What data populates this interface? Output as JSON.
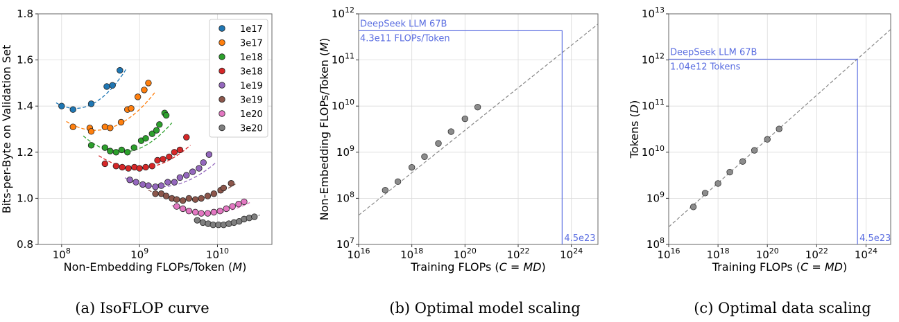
{
  "chart_data": [
    {
      "type": "scatter",
      "caption": "(a)  IsoFLOP curve",
      "xlabel_main": "Non-Embedding FLOPs/Token (",
      "xlabel_var": "M",
      "xlabel_end": ")",
      "ylabel": "Bits-per-Byte on Validation Set",
      "xscale": "log",
      "xlim": [
        50000000.0,
        50000000000.0
      ],
      "ylim": [
        0.8,
        1.8
      ],
      "xticks": [
        {
          "v": 100000000.0,
          "base": "10",
          "exp": "8"
        },
        {
          "v": 1000000000.0,
          "base": "10",
          "exp": "9"
        },
        {
          "v": 10000000000.0,
          "base": "10",
          "exp": "10"
        }
      ],
      "yticks": [
        {
          "v": 0.8,
          "label": "0.8"
        },
        {
          "v": 1.0,
          "label": "1.0"
        },
        {
          "v": 1.2,
          "label": "1.2"
        },
        {
          "v": 1.4,
          "label": "1.4"
        },
        {
          "v": 1.6,
          "label": "1.6"
        },
        {
          "v": 1.8,
          "label": "1.8"
        }
      ],
      "grid": true,
      "legend_position": "top-right",
      "series": [
        {
          "name": "1e17",
          "color": "#1f77b4",
          "points": [
            [
              100000000.0,
              1.4
            ],
            [
              140000000.0,
              1.385
            ],
            [
              240000000.0,
              1.41
            ],
            [
              380000000.0,
              1.485
            ],
            [
              450000000.0,
              1.49
            ],
            [
              560000000.0,
              1.555
            ]
          ],
          "fit": {
            "x0": 85000000.0,
            "x1": 680000000.0,
            "xmin": 150000000.0,
            "ymin": 1.39,
            "k": 0.4
          }
        },
        {
          "name": "3e17",
          "color": "#ff7f0e",
          "points": [
            [
              140000000.0,
              1.31
            ],
            [
              230000000.0,
              1.305
            ],
            [
              240000000.0,
              1.29
            ],
            [
              360000000.0,
              1.31
            ],
            [
              420000000.0,
              1.305
            ],
            [
              580000000.0,
              1.33
            ],
            [
              700000000.0,
              1.385
            ],
            [
              780000000.0,
              1.39
            ],
            [
              950000000.0,
              1.44
            ],
            [
              1150000000.0,
              1.47
            ],
            [
              1300000000.0,
              1.5
            ]
          ],
          "fit": {
            "x0": 115000000.0,
            "x1": 1600000000.0,
            "xmin": 270000000.0,
            "ymin": 1.295,
            "k": 0.28
          }
        },
        {
          "name": "1e18",
          "color": "#2ca02c",
          "points": [
            [
              240000000.0,
              1.23
            ],
            [
              360000000.0,
              1.22
            ],
            [
              420000000.0,
              1.205
            ],
            [
              500000000.0,
              1.2
            ],
            [
              590000000.0,
              1.21
            ],
            [
              700000000.0,
              1.2
            ],
            [
              850000000.0,
              1.22
            ],
            [
              1050000000.0,
              1.25
            ],
            [
              1200000000.0,
              1.26
            ],
            [
              1450000000.0,
              1.28
            ],
            [
              1650000000.0,
              1.295
            ],
            [
              1800000000.0,
              1.32
            ],
            [
              2100000000.0,
              1.37
            ],
            [
              2200000000.0,
              1.36
            ]
          ],
          "fit": {
            "x0": 190000000.0,
            "x1": 2600000000.0,
            "xmin": 580000000.0,
            "ymin": 1.2,
            "k": 0.3
          }
        },
        {
          "name": "3e18",
          "color": "#d62728",
          "points": [
            [
              360000000.0,
              1.15
            ],
            [
              500000000.0,
              1.14
            ],
            [
              600000000.0,
              1.135
            ],
            [
              720000000.0,
              1.13
            ],
            [
              860000000.0,
              1.135
            ],
            [
              1000000000.0,
              1.13
            ],
            [
              1200000000.0,
              1.135
            ],
            [
              1450000000.0,
              1.14
            ],
            [
              1700000000.0,
              1.165
            ],
            [
              2000000000.0,
              1.17
            ],
            [
              2400000000.0,
              1.18
            ],
            [
              2800000000.0,
              1.2
            ],
            [
              3300000000.0,
              1.21
            ],
            [
              4000000000.0,
              1.265
            ]
          ],
          "fit": {
            "x0": 300000000.0,
            "x1": 4500000000.0,
            "xmin": 950000000.0,
            "ymin": 1.13,
            "k": 0.22
          }
        },
        {
          "name": "1e19",
          "color": "#9467bd",
          "points": [
            [
              750000000.0,
              1.08
            ],
            [
              900000000.0,
              1.07
            ],
            [
              1100000000.0,
              1.06
            ],
            [
              1300000000.0,
              1.055
            ],
            [
              1600000000.0,
              1.05
            ],
            [
              1900000000.0,
              1.055
            ],
            [
              2300000000.0,
              1.07
            ],
            [
              2800000000.0,
              1.07
            ],
            [
              3300000000.0,
              1.09
            ],
            [
              4000000000.0,
              1.1
            ],
            [
              4800000000.0,
              1.115
            ],
            [
              5800000000.0,
              1.13
            ],
            [
              6600000000.0,
              1.155
            ],
            [
              7800000000.0,
              1.19
            ]
          ],
          "fit": {
            "x0": 650000000.0,
            "x1": 9500000000.0,
            "xmin": 1800000000.0,
            "ymin": 1.05,
            "k": 0.2
          }
        },
        {
          "name": "3e19",
          "color": "#8c564b",
          "points": [
            [
              1600000000.0,
              1.02
            ],
            [
              1900000000.0,
              1.02
            ],
            [
              2200000000.0,
              1.01
            ],
            [
              2600000000.0,
              1.0
            ],
            [
              3000000000.0,
              0.995
            ],
            [
              3600000000.0,
              0.99
            ],
            [
              4300000000.0,
              1.0
            ],
            [
              5200000000.0,
              0.995
            ],
            [
              6200000000.0,
              1.0
            ],
            [
              7500000000.0,
              1.01
            ],
            [
              9000000000.0,
              1.02
            ],
            [
              11000000000.0,
              1.035
            ],
            [
              12000000000.0,
              1.045
            ],
            [
              15000000000.0,
              1.065
            ]
          ],
          "fit": {
            "x0": 1300000000.0,
            "x1": 17000000000.0,
            "xmin": 4000000000.0,
            "ymin": 0.995,
            "k": 0.17
          }
        },
        {
          "name": "1e20",
          "color": "#e377c2",
          "points": [
            [
              3000000000.0,
              0.965
            ],
            [
              3600000000.0,
              0.955
            ],
            [
              4300000000.0,
              0.945
            ],
            [
              5200000000.0,
              0.94
            ],
            [
              6200000000.0,
              0.935
            ],
            [
              7500000000.0,
              0.935
            ],
            [
              9000000000.0,
              0.94
            ],
            [
              10800000000.0,
              0.945
            ],
            [
              13000000000.0,
              0.955
            ],
            [
              15600000000.0,
              0.965
            ],
            [
              18700000000.0,
              0.975
            ],
            [
              22000000000.0,
              0.985
            ]
          ],
          "fit": {
            "x0": 2600000000.0,
            "x1": 26000000000.0,
            "xmin": 7500000000.0,
            "ymin": 0.935,
            "k": 0.16
          }
        },
        {
          "name": "3e20",
          "color": "#7f7f7f",
          "points": [
            [
              5500000000.0,
              0.905
            ],
            [
              6500000000.0,
              0.895
            ],
            [
              7600000000.0,
              0.89
            ],
            [
              8800000000.0,
              0.885
            ],
            [
              10300000000.0,
              0.885
            ],
            [
              12000000000.0,
              0.885
            ],
            [
              14000000000.0,
              0.89
            ],
            [
              16300000000.0,
              0.895
            ],
            [
              19000000000.0,
              0.9
            ],
            [
              22000000000.0,
              0.91
            ],
            [
              25600000000.0,
              0.915
            ],
            [
              29800000000.0,
              0.92
            ]
          ],
          "fit": {
            "x0": 5000000000.0,
            "x1": 35000000000.0,
            "xmin": 11500000000.0,
            "ymin": 0.886,
            "k": 0.18
          }
        }
      ]
    },
    {
      "type": "scatter",
      "caption": "(b)  Optimal model scaling",
      "xlabel_main": "Training FLOPs (",
      "xlabel_var": "C = MD",
      "xlabel_end": ")",
      "ylabel_main": "Non-Embedding FLOPs/Token (",
      "ylabel_var": "M",
      "ylabel_end": ")",
      "xscale": "log",
      "yscale": "log",
      "xlim": [
        1e+16,
        1e+25
      ],
      "ylim": [
        10000000.0,
        1000000000000.0
      ],
      "xticks": [
        {
          "v": 1e+16,
          "base": "10",
          "exp": "16"
        },
        {
          "v": 1e+18,
          "base": "10",
          "exp": "18"
        },
        {
          "v": 1e+20,
          "base": "10",
          "exp": "20"
        },
        {
          "v": 1e+22,
          "base": "10",
          "exp": "22"
        },
        {
          "v": 1e+24,
          "base": "10",
          "exp": "24"
        }
      ],
      "yticks": [
        {
          "v": 10000000.0,
          "base": "10",
          "exp": "7"
        },
        {
          "v": 100000000.0,
          "base": "10",
          "exp": "8"
        },
        {
          "v": 1000000000.0,
          "base": "10",
          "exp": "9"
        },
        {
          "v": 10000000000.0,
          "base": "10",
          "exp": "10"
        },
        {
          "v": 100000000000.0,
          "base": "10",
          "exp": "11"
        },
        {
          "v": 1000000000000.0,
          "base": "10",
          "exp": "12"
        }
      ],
      "grid": true,
      "points": [
        [
          1e+17,
          150000000.0
        ],
        [
          3e+17,
          230000000.0
        ],
        [
          1e+18,
          470000000.0
        ],
        [
          3e+18,
          800000000.0
        ],
        [
          1e+19,
          1550000000.0
        ],
        [
          3e+19,
          2800000000.0
        ],
        [
          1e+20,
          5300000000.0
        ],
        [
          3e+20,
          9500000000.0
        ]
      ],
      "fit_line": [
        [
          1e+16,
          43000000.0
        ],
        [
          1e+25,
          600000000000.0
        ]
      ],
      "highlight": {
        "x": 4.5e+23,
        "y": 430000000000.0,
        "color": "#5b6ee1",
        "name_label": "DeepSeek LLM 67B",
        "value_label": "4.3e11 FLOPs/Token",
        "x_label": "4.5e23"
      }
    },
    {
      "type": "scatter",
      "caption": "(c)  Optimal data scaling",
      "xlabel_main": "Training FLOPs (",
      "xlabel_var": "C = MD",
      "xlabel_end": ")",
      "ylabel_main": "Tokens (",
      "ylabel_var": "D",
      "ylabel_end": ")",
      "xscale": "log",
      "yscale": "log",
      "xlim": [
        1e+16,
        1e+25
      ],
      "ylim": [
        100000000.0,
        10000000000000.0
      ],
      "xticks": [
        {
          "v": 1e+16,
          "base": "10",
          "exp": "16"
        },
        {
          "v": 1e+18,
          "base": "10",
          "exp": "18"
        },
        {
          "v": 1e+20,
          "base": "10",
          "exp": "20"
        },
        {
          "v": 1e+22,
          "base": "10",
          "exp": "22"
        },
        {
          "v": 1e+24,
          "base": "10",
          "exp": "24"
        }
      ],
      "yticks": [
        {
          "v": 100000000.0,
          "base": "10",
          "exp": "8"
        },
        {
          "v": 1000000000.0,
          "base": "10",
          "exp": "9"
        },
        {
          "v": 10000000000.0,
          "base": "10",
          "exp": "10"
        },
        {
          "v": 100000000000.0,
          "base": "10",
          "exp": "11"
        },
        {
          "v": 1000000000000.0,
          "base": "10",
          "exp": "12"
        },
        {
          "v": 10000000000000.0,
          "base": "10",
          "exp": "13"
        }
      ],
      "grid": true,
      "points": [
        [
          1e+17,
          650000000.0
        ],
        [
          3e+17,
          1300000000.0
        ],
        [
          1e+18,
          2100000000.0
        ],
        [
          3e+18,
          3700000000.0
        ],
        [
          1e+19,
          6300000000.0
        ],
        [
          3e+19,
          11000000000.0
        ],
        [
          1e+20,
          19000000000.0
        ],
        [
          3e+20,
          32000000000.0
        ]
      ],
      "fit_line": [
        [
          1e+16,
          240000000.0
        ],
        [
          1e+25,
          4600000000000.0
        ]
      ],
      "highlight": {
        "x": 4.5e+23,
        "y": 1040000000000.0,
        "color": "#5b6ee1",
        "name_label": "DeepSeek LLM 67B",
        "value_label": "1.04e12 Tokens",
        "x_label": "4.5e23"
      }
    }
  ]
}
